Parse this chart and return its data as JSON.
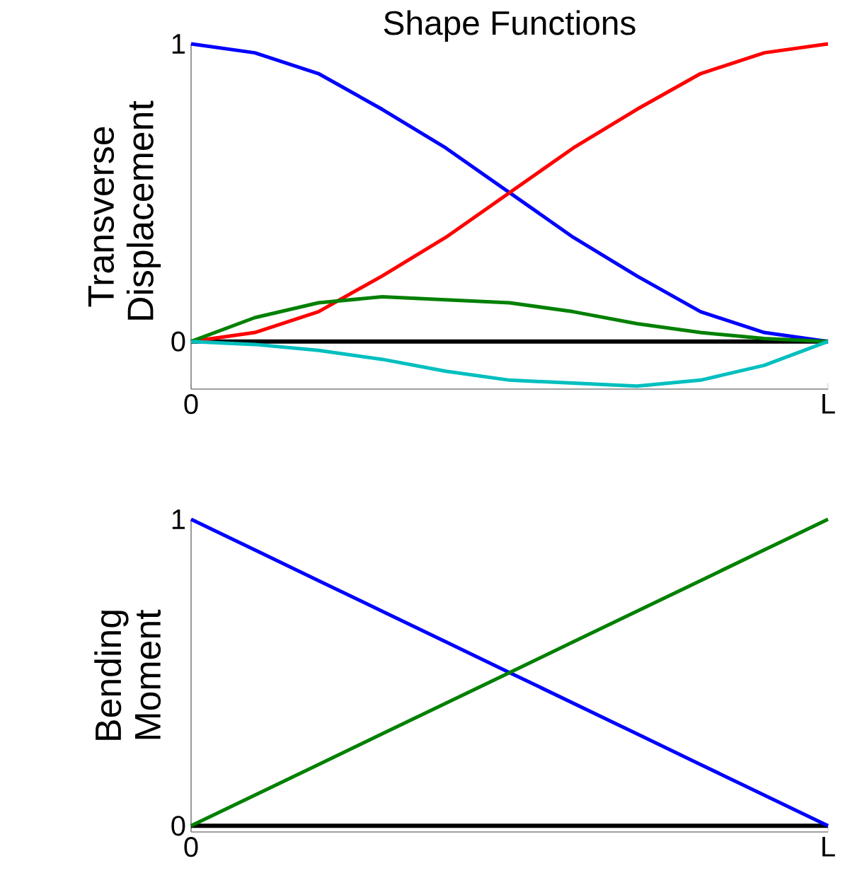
{
  "chart_data": [
    {
      "type": "line",
      "title": "Shape Functions",
      "ylabel": "Transverse Displacement",
      "categories": [
        "0",
        null,
        null,
        null,
        null,
        null,
        null,
        null,
        null,
        null,
        "L"
      ],
      "series": [
        {
          "color": "#0000ff",
          "values": [
            1,
            0.97,
            0.9,
            0.78,
            0.65,
            0.5,
            0.35,
            0.22,
            0.1,
            0.03,
            0
          ]
        },
        {
          "color": "#ff0000",
          "values": [
            0,
            0.03,
            0.1,
            0.22,
            0.35,
            0.5,
            0.65,
            0.78,
            0.9,
            0.97,
            1
          ]
        },
        {
          "color": "#008000",
          "values": [
            0,
            0.08,
            0.13,
            0.15,
            0.14,
            0.13,
            0.1,
            0.06,
            0.03,
            0.01,
            0
          ]
        },
        {
          "color": "#00bfbf",
          "values": [
            0,
            -0.01,
            -0.03,
            -0.06,
            -0.1,
            -0.13,
            -0.14,
            -0.15,
            -0.13,
            -0.08,
            0
          ]
        }
      ],
      "ylim": [
        -0.16,
        1
      ],
      "yticks": [
        0,
        1
      ],
      "ref_lines": [
        {
          "axis": "y",
          "value": 0,
          "color": "#000000"
        }
      ]
    },
    {
      "type": "line",
      "ylabel": "Bending Moment",
      "categories": [
        "0",
        null,
        null,
        null,
        null,
        null,
        null,
        null,
        null,
        null,
        "L"
      ],
      "series": [
        {
          "color": "#0000ff",
          "values": [
            1,
            0.9,
            0.8,
            0.7,
            0.6,
            0.5,
            0.4,
            0.3,
            0.2,
            0.1,
            0
          ]
        },
        {
          "color": "#008000",
          "values": [
            0,
            0.1,
            0.2,
            0.3,
            0.4,
            0.5,
            0.6,
            0.7,
            0.8,
            0.9,
            1
          ]
        }
      ],
      "ylim": [
        -0.02,
        1
      ],
      "yticks": [
        0,
        1
      ],
      "ref_lines": [
        {
          "axis": "y",
          "value": 0,
          "color": "#000000"
        }
      ]
    }
  ]
}
